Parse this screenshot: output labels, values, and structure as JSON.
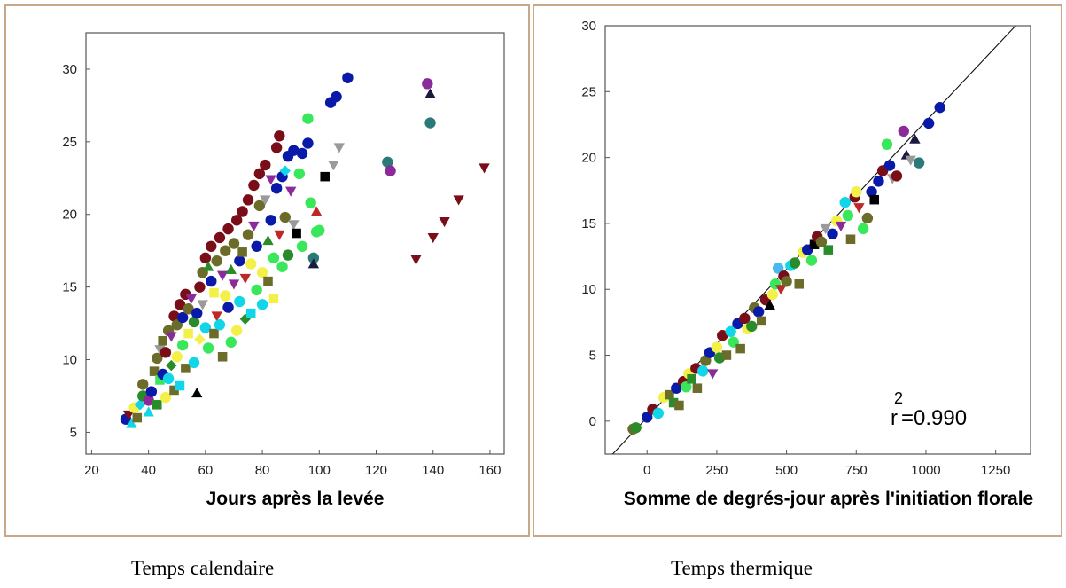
{
  "colors": [
    "#0a1aa8",
    "#7a0e18",
    "#10d6e8",
    "#8b2a9a",
    "#6b6b2a",
    "#2a8b2a",
    "#f4f04a",
    "#38e85a",
    "#9a9a9a",
    "#c02828",
    "#2a7a7a",
    "#1a1a40",
    "#8a6a3a",
    "#000000",
    "#48b8f0"
  ],
  "chart_data": [
    {
      "type": "scatter",
      "xlabel": "Jours après la levée",
      "caption": "Temps calendaire",
      "xlim": [
        18,
        165
      ],
      "ylim": [
        3.5,
        32.5
      ],
      "xticks": [
        "20",
        "40",
        "60",
        "80",
        "100",
        "120",
        "140",
        "160"
      ],
      "yticks": [
        "5",
        "10",
        "15",
        "20",
        "25",
        "30"
      ],
      "points": [
        [
          32,
          5.9,
          0,
          0
        ],
        [
          33,
          6.2,
          1,
          1
        ],
        [
          34,
          5.6,
          2,
          2
        ],
        [
          35,
          6.7,
          6,
          0
        ],
        [
          36,
          6.0,
          4,
          3
        ],
        [
          37,
          6.9,
          2,
          4
        ],
        [
          38,
          7.5,
          5,
          0
        ],
        [
          38,
          8.3,
          4,
          0
        ],
        [
          40,
          7.2,
          3,
          0
        ],
        [
          40,
          6.4,
          2,
          2
        ],
        [
          41,
          7.8,
          0,
          0
        ],
        [
          42,
          9.2,
          4,
          3
        ],
        [
          43,
          10.1,
          4,
          0
        ],
        [
          43,
          6.9,
          5,
          3
        ],
        [
          44,
          8.6,
          7,
          3
        ],
        [
          44,
          10.7,
          8,
          1
        ],
        [
          45,
          9.0,
          0,
          0
        ],
        [
          45,
          11.3,
          4,
          3
        ],
        [
          46,
          10.5,
          1,
          0
        ],
        [
          46,
          7.4,
          6,
          0
        ],
        [
          47,
          12.0,
          4,
          0
        ],
        [
          47,
          8.7,
          2,
          0
        ],
        [
          48,
          11.6,
          3,
          1
        ],
        [
          48,
          9.6,
          5,
          4
        ],
        [
          49,
          13.0,
          1,
          0
        ],
        [
          49,
          7.9,
          4,
          3
        ],
        [
          50,
          12.4,
          4,
          0
        ],
        [
          50,
          10.2,
          6,
          0
        ],
        [
          51,
          13.8,
          1,
          0
        ],
        [
          51,
          8.2,
          2,
          3
        ],
        [
          52,
          12.9,
          0,
          0
        ],
        [
          52,
          11.0,
          7,
          0
        ],
        [
          53,
          14.5,
          1,
          0
        ],
        [
          53,
          9.4,
          4,
          3
        ],
        [
          54,
          13.5,
          4,
          0
        ],
        [
          54,
          11.8,
          6,
          3
        ],
        [
          55,
          14.2,
          3,
          1
        ],
        [
          56,
          9.8,
          2,
          0
        ],
        [
          56,
          12.6,
          5,
          0
        ],
        [
          57,
          13.2,
          0,
          0
        ],
        [
          57,
          7.7,
          13,
          2
        ],
        [
          58,
          15.0,
          1,
          0
        ],
        [
          58,
          11.4,
          6,
          4
        ],
        [
          59,
          16.0,
          4,
          0
        ],
        [
          59,
          13.8,
          8,
          1
        ],
        [
          60,
          17.0,
          1,
          0
        ],
        [
          60,
          12.2,
          2,
          0
        ],
        [
          61,
          16.4,
          5,
          2
        ],
        [
          61,
          10.8,
          7,
          0
        ],
        [
          62,
          15.4,
          0,
          0
        ],
        [
          62,
          17.8,
          1,
          0
        ],
        [
          63,
          14.6,
          6,
          3
        ],
        [
          63,
          11.8,
          4,
          3
        ],
        [
          64,
          16.8,
          4,
          0
        ],
        [
          64,
          13.0,
          9,
          1
        ],
        [
          65,
          18.4,
          1,
          0
        ],
        [
          65,
          12.4,
          2,
          0
        ],
        [
          66,
          15.8,
          3,
          1
        ],
        [
          66,
          10.2,
          4,
          3
        ],
        [
          67,
          17.5,
          4,
          0
        ],
        [
          67,
          14.4,
          6,
          0
        ],
        [
          68,
          19.0,
          1,
          0
        ],
        [
          68,
          13.6,
          0,
          0
        ],
        [
          69,
          16.2,
          5,
          2
        ],
        [
          69,
          11.2,
          7,
          0
        ],
        [
          70,
          18.0,
          4,
          0
        ],
        [
          70,
          15.2,
          3,
          1
        ],
        [
          71,
          19.6,
          1,
          0
        ],
        [
          71,
          12.0,
          6,
          0
        ],
        [
          72,
          16.8,
          0,
          0
        ],
        [
          72,
          14.0,
          2,
          0
        ],
        [
          73,
          20.2,
          1,
          0
        ],
        [
          73,
          17.4,
          4,
          3
        ],
        [
          74,
          15.6,
          9,
          1
        ],
        [
          74,
          12.8,
          5,
          4
        ],
        [
          75,
          21.0,
          1,
          0
        ],
        [
          75,
          18.6,
          4,
          0
        ],
        [
          76,
          16.6,
          6,
          0
        ],
        [
          76,
          13.2,
          2,
          3
        ],
        [
          77,
          22.0,
          1,
          0
        ],
        [
          77,
          19.2,
          3,
          1
        ],
        [
          78,
          17.8,
          0,
          0
        ],
        [
          78,
          14.8,
          7,
          0
        ],
        [
          79,
          22.8,
          1,
          0
        ],
        [
          79,
          20.6,
          4,
          0
        ],
        [
          80,
          16.0,
          6,
          0
        ],
        [
          80,
          13.8,
          2,
          0
        ],
        [
          81,
          23.4,
          1,
          0
        ],
        [
          81,
          21.0,
          8,
          1
        ],
        [
          82,
          18.2,
          5,
          2
        ],
        [
          82,
          15.4,
          4,
          3
        ],
        [
          83,
          22.4,
          3,
          1
        ],
        [
          83,
          19.6,
          0,
          0
        ],
        [
          84,
          17.0,
          7,
          0
        ],
        [
          84,
          14.2,
          6,
          3
        ],
        [
          85,
          24.6,
          1,
          0
        ],
        [
          85,
          21.8,
          0,
          0
        ],
        [
          86,
          25.4,
          1,
          0
        ],
        [
          86,
          18.6,
          9,
          1
        ],
        [
          87,
          22.6,
          0,
          0
        ],
        [
          87,
          16.4,
          7,
          0
        ],
        [
          88,
          23.0,
          2,
          4
        ],
        [
          88,
          19.8,
          4,
          0
        ],
        [
          89,
          24.0,
          0,
          0
        ],
        [
          89,
          17.2,
          5,
          0
        ],
        [
          90,
          21.6,
          3,
          1
        ],
        [
          91,
          24.4,
          0,
          0
        ],
        [
          91,
          19.3,
          8,
          1
        ],
        [
          92,
          18.7,
          13,
          3
        ],
        [
          93,
          22.8,
          7,
          0
        ],
        [
          94,
          24.2,
          0,
          0
        ],
        [
          94,
          17.8,
          7,
          0
        ],
        [
          96,
          24.9,
          0,
          0
        ],
        [
          96,
          26.6,
          7,
          0
        ],
        [
          97,
          20.8,
          7,
          0
        ],
        [
          98,
          17.0,
          10,
          0
        ],
        [
          98,
          16.6,
          11,
          2
        ],
        [
          99,
          20.2,
          9,
          2
        ],
        [
          99,
          18.8,
          7,
          0
        ],
        [
          100,
          18.9,
          7,
          0
        ],
        [
          102,
          22.6,
          13,
          3
        ],
        [
          104,
          27.7,
          0,
          0
        ],
        [
          105,
          23.4,
          8,
          1
        ],
        [
          106,
          28.1,
          0,
          0
        ],
        [
          107,
          24.6,
          8,
          1
        ],
        [
          110,
          29.4,
          0,
          0
        ],
        [
          124,
          23.6,
          10,
          0
        ],
        [
          125,
          23.0,
          3,
          0
        ],
        [
          134,
          16.9,
          1,
          1
        ],
        [
          138,
          29.0,
          3,
          0
        ],
        [
          139,
          28.3,
          11,
          2
        ],
        [
          139,
          26.3,
          10,
          0
        ],
        [
          140,
          18.4,
          1,
          1
        ],
        [
          144,
          19.5,
          1,
          1
        ],
        [
          149,
          21.0,
          1,
          1
        ],
        [
          158,
          23.2,
          1,
          1
        ]
      ]
    },
    {
      "type": "scatter",
      "xlabel": "Somme de degrés-jour après l'initiation florale",
      "caption": "Temps thermique",
      "xlim": [
        -150,
        1375
      ],
      "ylim": [
        -2.5,
        30
      ],
      "xticks": [
        "0",
        "250",
        "500",
        "750",
        "1000",
        "1250"
      ],
      "yticks": [
        "0",
        "5",
        "10",
        "15",
        "20",
        "25",
        "30"
      ],
      "r2_base": "r",
      "r2_exp": "2",
      "r2_value": "=0.990",
      "fit_line": [
        [
          -150,
          -3.1
        ],
        [
          1375,
          31.2
        ]
      ],
      "points": [
        [
          -50,
          -0.6,
          4,
          0
        ],
        [
          -40,
          -0.5,
          5,
          0
        ],
        [
          0,
          0.3,
          0,
          0
        ],
        [
          20,
          0.9,
          1,
          0
        ],
        [
          40,
          0.6,
          2,
          0
        ],
        [
          60,
          1.8,
          6,
          0
        ],
        [
          80,
          2.0,
          4,
          3
        ],
        [
          95,
          1.4,
          5,
          3
        ],
        [
          105,
          2.5,
          0,
          0
        ],
        [
          115,
          1.2,
          4,
          3
        ],
        [
          130,
          3.0,
          1,
          0
        ],
        [
          140,
          2.6,
          7,
          0
        ],
        [
          150,
          3.6,
          6,
          0
        ],
        [
          160,
          3.2,
          5,
          3
        ],
        [
          175,
          4.0,
          1,
          0
        ],
        [
          180,
          2.5,
          4,
          3
        ],
        [
          200,
          3.8,
          2,
          0
        ],
        [
          210,
          4.6,
          4,
          0
        ],
        [
          225,
          5.2,
          0,
          0
        ],
        [
          235,
          3.6,
          3,
          1
        ],
        [
          250,
          5.6,
          6,
          0
        ],
        [
          260,
          4.8,
          5,
          0
        ],
        [
          270,
          6.5,
          1,
          0
        ],
        [
          285,
          5.0,
          4,
          3
        ],
        [
          300,
          6.8,
          2,
          0
        ],
        [
          310,
          6.0,
          7,
          0
        ],
        [
          325,
          7.4,
          0,
          0
        ],
        [
          335,
          5.5,
          4,
          3
        ],
        [
          350,
          7.8,
          1,
          0
        ],
        [
          360,
          7.0,
          6,
          0
        ],
        [
          375,
          7.2,
          5,
          0
        ],
        [
          385,
          8.6,
          4,
          0
        ],
        [
          400,
          8.3,
          0,
          0
        ],
        [
          410,
          7.6,
          4,
          3
        ],
        [
          425,
          9.2,
          1,
          0
        ],
        [
          440,
          8.8,
          13,
          2
        ],
        [
          450,
          9.6,
          6,
          0
        ],
        [
          460,
          10.4,
          7,
          0
        ],
        [
          470,
          11.6,
          14,
          0
        ],
        [
          480,
          10.0,
          9,
          1
        ],
        [
          490,
          11.0,
          1,
          0
        ],
        [
          500,
          10.6,
          4,
          0
        ],
        [
          515,
          11.8,
          2,
          0
        ],
        [
          530,
          12.0,
          5,
          0
        ],
        [
          545,
          10.4,
          4,
          3
        ],
        [
          560,
          12.8,
          6,
          0
        ],
        [
          575,
          13.0,
          0,
          0
        ],
        [
          590,
          12.2,
          7,
          0
        ],
        [
          600,
          13.4,
          13,
          3
        ],
        [
          610,
          14.0,
          1,
          0
        ],
        [
          625,
          13.6,
          4,
          0
        ],
        [
          640,
          14.6,
          8,
          1
        ],
        [
          650,
          13.0,
          5,
          3
        ],
        [
          665,
          14.2,
          0,
          0
        ],
        [
          680,
          15.2,
          6,
          0
        ],
        [
          695,
          14.8,
          3,
          1
        ],
        [
          710,
          16.6,
          2,
          0
        ],
        [
          720,
          15.6,
          7,
          0
        ],
        [
          730,
          13.8,
          4,
          3
        ],
        [
          745,
          17.0,
          1,
          0
        ],
        [
          750,
          17.4,
          6,
          0
        ],
        [
          760,
          16.2,
          9,
          1
        ],
        [
          775,
          14.6,
          7,
          0
        ],
        [
          790,
          15.4,
          4,
          0
        ],
        [
          805,
          17.4,
          0,
          0
        ],
        [
          815,
          16.8,
          13,
          3
        ],
        [
          830,
          18.2,
          0,
          0
        ],
        [
          845,
          19.0,
          1,
          0
        ],
        [
          860,
          21.0,
          7,
          0
        ],
        [
          870,
          19.4,
          0,
          0
        ],
        [
          880,
          18.4,
          8,
          1
        ],
        [
          895,
          18.6,
          1,
          0
        ],
        [
          920,
          22.0,
          3,
          0
        ],
        [
          930,
          20.2,
          11,
          2
        ],
        [
          945,
          19.8,
          8,
          1
        ],
        [
          960,
          21.4,
          11,
          2
        ],
        [
          975,
          19.6,
          10,
          0
        ],
        [
          1010,
          22.6,
          0,
          0
        ],
        [
          1050,
          23.8,
          0,
          0
        ]
      ]
    }
  ]
}
